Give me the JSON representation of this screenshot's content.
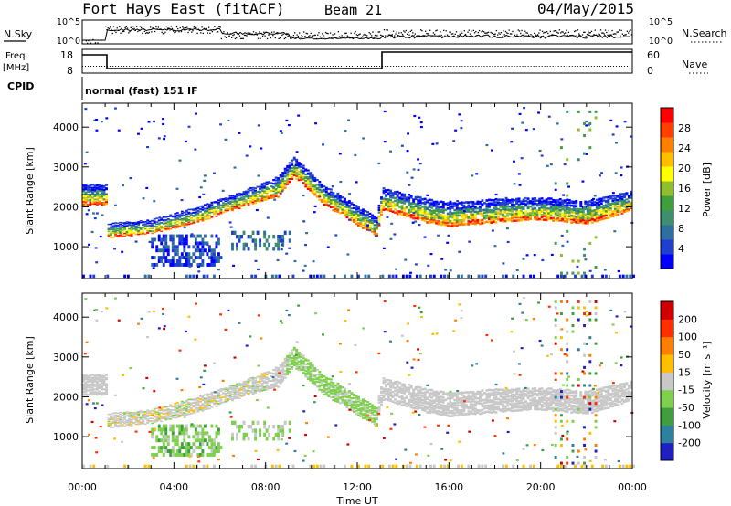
{
  "header": {
    "site": "Fort Hays East (fitACF)",
    "beam": "Beam 21",
    "date": "04/May/2015"
  },
  "strip_labels": {
    "nsky": "N.Sky",
    "nsky_ticks": [
      "10^5",
      "10^0"
    ],
    "nsearch": "N.Search",
    "nsearch_ticks": [
      "10^5",
      "10^0"
    ],
    "freq": "Freq.",
    "freq_unit": "[MHz]",
    "freq_ticks": [
      "18",
      "8"
    ],
    "nave": "Nave",
    "nave_ticks": [
      "60",
      "0"
    ],
    "cpid": "CPID",
    "cpid_value": "normal (fast) 151 IF"
  },
  "chart_data": [
    {
      "type": "heatmap",
      "parameter": "Power",
      "ylabel": "Slant Range [km]",
      "yticks": [
        1000,
        2000,
        3000,
        4000
      ],
      "ylim": [
        200,
        4600
      ],
      "xlim_hours": [
        0,
        24
      ],
      "colorbar_label": "Power [dB]",
      "colorbar_ticks": [
        "28",
        "24",
        "20",
        "16",
        "12",
        "8",
        "4"
      ],
      "colors": [
        "#0000ff",
        "#1f3fcf",
        "#2f6f9f",
        "#3f8f6f",
        "#3f9f3f",
        "#8fbf2f",
        "#ffff00",
        "#ffbf00",
        "#ff8000",
        "#ff4000",
        "#ff0000"
      ],
      "echo_band": [
        {
          "t": 0.0,
          "center": 2300,
          "half": 260
        },
        {
          "t": 1.0,
          "center": 2300,
          "half": 260
        },
        {
          "t": 1.05,
          "center": 1400,
          "half": 180
        },
        {
          "t": 3.0,
          "center": 1500,
          "half": 180
        },
        {
          "t": 5.0,
          "center": 1800,
          "half": 200
        },
        {
          "t": 7.0,
          "center": 2200,
          "half": 200
        },
        {
          "t": 8.5,
          "center": 2500,
          "half": 260
        },
        {
          "t": 9.2,
          "center": 3000,
          "half": 250
        },
        {
          "t": 10.5,
          "center": 2300,
          "half": 250
        },
        {
          "t": 12.8,
          "center": 1500,
          "half": 250
        },
        {
          "t": 13.05,
          "center": 2200,
          "half": 280
        },
        {
          "t": 15.0,
          "center": 1900,
          "half": 300
        },
        {
          "t": 16.0,
          "center": 1800,
          "half": 300
        },
        {
          "t": 18.0,
          "center": 1900,
          "half": 300
        },
        {
          "t": 20.0,
          "center": 1950,
          "half": 280
        },
        {
          "t": 22.0,
          "center": 1850,
          "half": 300
        },
        {
          "t": 24.0,
          "center": 2150,
          "half": 250
        }
      ],
      "low_patch": {
        "t0": 3.0,
        "t1": 6.0,
        "r0": 500,
        "r1": 1300
      }
    },
    {
      "type": "heatmap",
      "parameter": "Velocity",
      "ylabel": "Slant Range [km]",
      "yticks": [
        1000,
        2000,
        3000,
        4000
      ],
      "ylim": [
        200,
        4600
      ],
      "xlabel": "Time UT",
      "xticks": [
        "00:00",
        "04:00",
        "08:00",
        "12:00",
        "16:00",
        "20:00",
        "00:00"
      ],
      "colorbar_label": "Velocity [m s⁻¹]",
      "colorbar_ticks": [
        "200",
        "100",
        "50",
        "15",
        "-15",
        "-50",
        "-100",
        "-200"
      ],
      "colors": [
        "#2020c0",
        "#2f7f9f",
        "#3f9f3f",
        "#7fd04f",
        "#c8c8c8",
        "#ffbf00",
        "#ff8000",
        "#ff3000",
        "#d00000"
      ]
    }
  ]
}
